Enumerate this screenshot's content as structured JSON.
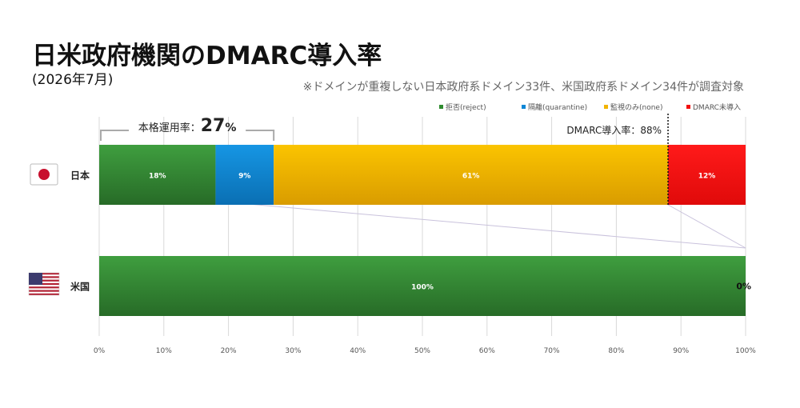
{
  "page": {
    "title": "日米政府機関のDMARC導入率",
    "subtitle": "(2026年7月)",
    "note": "※ドメインが重複しない日本政府系ドメイン33件、米国政府系ドメイン34件が調査対象"
  },
  "chart_data": {
    "type": "bar",
    "orientation": "horizontal",
    "stacked": true,
    "categories": [
      "日本",
      "米国"
    ],
    "series": [
      {
        "name": "拒否(reject)",
        "color": "#2e8b2e",
        "values": [
          18,
          100
        ],
        "labels": [
          "18%",
          "100%"
        ]
      },
      {
        "name": "隔離(quarantine)",
        "color": "#0a86d6",
        "values": [
          9,
          0
        ],
        "labels": [
          "9%",
          ""
        ]
      },
      {
        "name": "監視のみ(none)",
        "color": "#f2b400",
        "values": [
          61,
          0
        ],
        "labels": [
          "61%",
          ""
        ]
      },
      {
        "name": "DMARC未導入",
        "color": "#f20f0f",
        "values": [
          12,
          0
        ],
        "labels": [
          "12%",
          "0%"
        ]
      }
    ],
    "xlim": [
      0,
      100
    ],
    "xticks": [
      "0%",
      "10%",
      "20%",
      "30%",
      "40%",
      "50%",
      "60%",
      "70%",
      "80%",
      "90%",
      "100%"
    ],
    "grid": true,
    "legend_position": "top-right",
    "annotations": {
      "enforcement_label": "本格運用率：",
      "enforcement_value": "27",
      "enforcement_unit": "%",
      "adoption_label": "DMARC導入率：88%",
      "adoption_value": 88
    },
    "flags": [
      "japan-flag-icon",
      "us-flag-icon"
    ]
  }
}
